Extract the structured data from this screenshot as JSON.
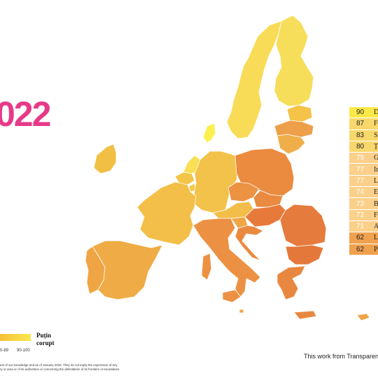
{
  "year_label": "022",
  "ranking": [
    {
      "score": "90",
      "country": "Danemarca",
      "color": "#fbe94a"
    },
    {
      "score": "87",
      "country": "Finlanda",
      "color": "#f8d86c"
    },
    {
      "score": "83",
      "country": "Suedia",
      "color": "#f8d86c"
    },
    {
      "score": "80",
      "country": "Țările de Jos",
      "color": "#f8d86c"
    },
    {
      "score": "79",
      "country": "Germania",
      "color": "#fbd08a"
    },
    {
      "score": "77",
      "country": "Irlanda",
      "color": "#fbd08a"
    },
    {
      "score": "77",
      "country": "Luxemburg",
      "color": "#fbd08a"
    },
    {
      "score": "74",
      "country": "Estonia",
      "color": "#fbd08a"
    },
    {
      "score": "73",
      "country": "Belgia",
      "color": "#fbd08a"
    },
    {
      "score": "72",
      "country": "Franța",
      "color": "#fbd08a"
    },
    {
      "score": "71",
      "country": "Austria",
      "color": "#fbd08a"
    },
    {
      "score": "62",
      "country": "Letonia",
      "color": "#f0a14e"
    },
    {
      "score": "62",
      "country": "Portugalia",
      "color": "#f0a14e"
    }
  ],
  "legend": {
    "title_line1": "Puțin",
    "title_line2": "corupt",
    "range_left": "0-89",
    "range_right": "90-100"
  },
  "disclaimer_line1": "est of our knowledge and as of January 2023. They do not imply the expression of any",
  "disclaimer_line2": "ry or area or of its authorities or concerning the delimitation of its frontiers or boundaries.",
  "credit": "This work from Transparen",
  "map_regions": [
    {
      "name": "Sweden",
      "color": "#f8dc57"
    },
    {
      "name": "Finland",
      "color": "#f7de5a"
    },
    {
      "name": "Denmark",
      "color": "#fbf050"
    },
    {
      "name": "Estonia",
      "color": "#f4c348"
    },
    {
      "name": "Latvia",
      "color": "#ee9f4a"
    },
    {
      "name": "Lithuania",
      "color": "#f0ae4a"
    },
    {
      "name": "Ireland",
      "color": "#f2bf45"
    },
    {
      "name": "Netherlands",
      "color": "#f8df53"
    },
    {
      "name": "Belgium",
      "color": "#f3c548"
    },
    {
      "name": "Luxembourg",
      "color": "#f5c947"
    },
    {
      "name": "Germany",
      "color": "#f3c24a"
    },
    {
      "name": "France",
      "color": "#f3bf48"
    },
    {
      "name": "Spain",
      "color": "#efab45"
    },
    {
      "name": "Portugal",
      "color": "#efa544"
    },
    {
      "name": "Austria",
      "color": "#f2bd48"
    },
    {
      "name": "Poland",
      "color": "#eb8b40"
    },
    {
      "name": "Czechia",
      "color": "#ec9243"
    },
    {
      "name": "Slovakia",
      "color": "#ea8a41"
    },
    {
      "name": "Hungary",
      "color": "#e77a3b"
    },
    {
      "name": "Slovenia",
      "color": "#efa745"
    },
    {
      "name": "Croatia",
      "color": "#ea8a40"
    },
    {
      "name": "Italy",
      "color": "#ec9143"
    },
    {
      "name": "Romania",
      "color": "#e57b3c"
    },
    {
      "name": "Bulgaria",
      "color": "#e4783b"
    },
    {
      "name": "Greece",
      "color": "#e8873f"
    },
    {
      "name": "Cyprus",
      "color": "#eea446"
    },
    {
      "name": "Malta",
      "color": "#f0a847"
    }
  ]
}
